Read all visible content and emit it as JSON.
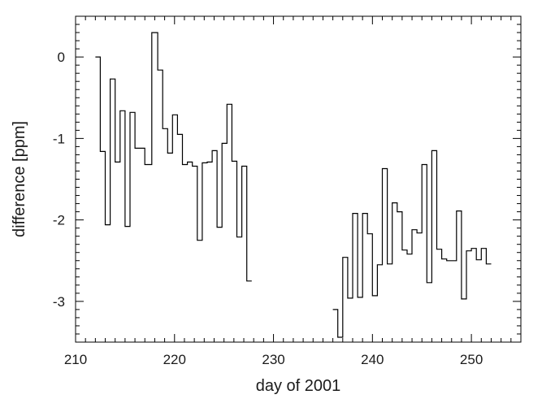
{
  "chart_data": {
    "type": "line",
    "step": true,
    "title": "",
    "xlabel": "day of 2001",
    "ylabel": "difference [ppm]",
    "xlim": [
      210,
      255
    ],
    "ylim": [
      -3.5,
      0.5
    ],
    "x_ticks": [
      210,
      220,
      230,
      240,
      250
    ],
    "x_tick_labels": [
      "210",
      "220",
      "230",
      "240",
      "250"
    ],
    "y_ticks": [
      0,
      -1,
      -2,
      -3
    ],
    "y_tick_labels": [
      "0",
      "-1",
      "-2",
      "-3"
    ],
    "grid": false,
    "series": [
      {
        "values": [
          {
            "x": 212.0,
            "y": 0.0
          },
          {
            "x": 212.5,
            "y": -1.16
          },
          {
            "x": 213.0,
            "y": -2.06
          },
          {
            "x": 213.5,
            "y": -0.27
          },
          {
            "x": 214.0,
            "y": -1.29
          },
          {
            "x": 214.5,
            "y": -0.66
          },
          {
            "x": 215.0,
            "y": -2.08
          },
          {
            "x": 215.5,
            "y": -0.68
          },
          {
            "x": 216.0,
            "y": -1.12
          },
          {
            "x": 217.0,
            "y": -1.32
          },
          {
            "x": 217.7,
            "y": 0.3
          },
          {
            "x": 218.3,
            "y": -0.16
          },
          {
            "x": 218.8,
            "y": -0.88
          },
          {
            "x": 219.3,
            "y": -1.18
          },
          {
            "x": 219.8,
            "y": -0.71
          },
          {
            "x": 220.3,
            "y": -0.95
          },
          {
            "x": 220.8,
            "y": -1.32
          },
          {
            "x": 221.3,
            "y": -1.29
          },
          {
            "x": 221.8,
            "y": -1.34
          },
          {
            "x": 222.3,
            "y": -2.25
          },
          {
            "x": 222.8,
            "y": -1.3
          },
          {
            "x": 223.3,
            "y": -1.29
          },
          {
            "x": 223.8,
            "y": -1.15
          },
          {
            "x": 224.3,
            "y": -2.09
          },
          {
            "x": 224.8,
            "y": -1.06
          },
          {
            "x": 225.3,
            "y": -0.58
          },
          {
            "x": 225.8,
            "y": -1.28
          },
          {
            "x": 226.3,
            "y": -2.21
          },
          {
            "x": 226.8,
            "y": -1.34
          },
          {
            "x": 227.3,
            "y": -2.75
          },
          {
            "x": 227.8,
            "y": -2.75
          }
        ]
      },
      {
        "values": [
          {
            "x": 236.0,
            "y": -3.1
          },
          {
            "x": 236.5,
            "y": -3.44
          },
          {
            "x": 237.0,
            "y": -2.46
          },
          {
            "x": 237.5,
            "y": -2.96
          },
          {
            "x": 238.0,
            "y": -1.92
          },
          {
            "x": 238.5,
            "y": -2.95
          },
          {
            "x": 239.0,
            "y": -1.92
          },
          {
            "x": 239.5,
            "y": -2.17
          },
          {
            "x": 240.0,
            "y": -2.93
          },
          {
            "x": 240.5,
            "y": -2.55
          },
          {
            "x": 241.0,
            "y": -1.37
          },
          {
            "x": 241.5,
            "y": -2.54
          },
          {
            "x": 242.0,
            "y": -1.79
          },
          {
            "x": 242.5,
            "y": -1.9
          },
          {
            "x": 243.0,
            "y": -2.37
          },
          {
            "x": 243.5,
            "y": -2.42
          },
          {
            "x": 244.0,
            "y": -2.12
          },
          {
            "x": 244.5,
            "y": -2.16
          },
          {
            "x": 245.0,
            "y": -1.32
          },
          {
            "x": 245.5,
            "y": -2.77
          },
          {
            "x": 246.0,
            "y": -1.15
          },
          {
            "x": 246.5,
            "y": -2.36
          },
          {
            "x": 247.0,
            "y": -2.48
          },
          {
            "x": 247.5,
            "y": -2.5
          },
          {
            "x": 248.0,
            "y": -2.5
          },
          {
            "x": 248.5,
            "y": -1.89
          },
          {
            "x": 249.0,
            "y": -2.97
          },
          {
            "x": 249.5,
            "y": -2.38
          },
          {
            "x": 250.0,
            "y": -2.35
          },
          {
            "x": 250.5,
            "y": -2.49
          },
          {
            "x": 251.0,
            "y": -2.35
          },
          {
            "x": 251.5,
            "y": -2.54
          },
          {
            "x": 252.0,
            "y": -2.54
          }
        ]
      }
    ]
  }
}
